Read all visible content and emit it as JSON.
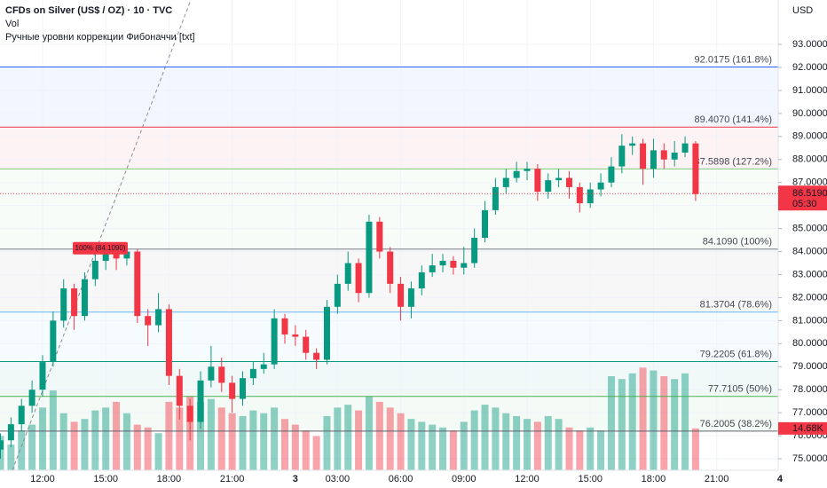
{
  "chart_data": {
    "type": "candlestick",
    "title": "CFDs on Silver (US$ / OZ) · 10 · TVC",
    "volume_label": "Vol",
    "indicator_label": "Ручные уровни коррекции Фибоначчи [txt]",
    "y_axis_label": "USD",
    "categories": [
      null,
      null,
      null,
      null,
      "12:00",
      null,
      null,
      null,
      null,
      null,
      "15:00",
      null,
      null,
      null,
      null,
      null,
      "18:00",
      null,
      null,
      null,
      null,
      null,
      "21:00",
      null,
      null,
      null,
      null,
      null,
      "3",
      null,
      null,
      null,
      "03:00",
      null,
      null,
      null,
      null,
      null,
      "06:00",
      null,
      null,
      null,
      null,
      null,
      "09:00",
      null,
      null,
      null,
      null,
      null,
      "12:00",
      null,
      null,
      null,
      null,
      null,
      "15:00",
      null,
      null,
      null,
      null,
      null,
      "18:00",
      null,
      null,
      null,
      null,
      null,
      "21:00",
      null,
      null,
      null,
      null,
      null,
      "4"
    ],
    "open": [
      75.4,
      75.8,
      76.5,
      77.3,
      78.0,
      79.2,
      81.0,
      82.4,
      81.2,
      82.8,
      83.6,
      84.1,
      83.7,
      84.0,
      81.2,
      80.8,
      81.5,
      78.6,
      77.3,
      76.6,
      78.4,
      79.0,
      78.3,
      77.6,
      78.5,
      78.9,
      79.1,
      81.1,
      80.4,
      80.3,
      79.6,
      79.3,
      81.6,
      82.6,
      83.5,
      82.2,
      85.3,
      84.0,
      82.6,
      81.6,
      82.4,
      83.1,
      83.4,
      83.6,
      83.3,
      83.5,
      84.6,
      85.8,
      86.8,
      87.2,
      87.5,
      87.6,
      86.6,
      87.1,
      87.2,
      86.8,
      86.1,
      86.7,
      87.0,
      87.7,
      88.6,
      88.7,
      87.6,
      88.4,
      88.0,
      88.3,
      88.7,
      null,
      null,
      null,
      null,
      null,
      null,
      null,
      null
    ],
    "high": [
      76.1,
      76.8,
      77.6,
      78.4,
      79.5,
      81.4,
      82.8,
      82.6,
      83.1,
      84.0,
      84.4,
      84.4,
      84.3,
      84.1,
      81.5,
      82.2,
      81.7,
      78.9,
      77.6,
      78.8,
      79.9,
      79.4,
      78.6,
      78.8,
      79.2,
      79.6,
      81.5,
      81.3,
      80.8,
      80.6,
      79.8,
      81.9,
      83.0,
      84.0,
      83.7,
      85.6,
      85.5,
      84.2,
      82.9,
      82.7,
      83.4,
      83.9,
      83.9,
      83.8,
      84.2,
      85.0,
      86.2,
      87.2,
      87.6,
      87.9,
      87.9,
      87.8,
      87.4,
      87.6,
      87.5,
      87.0,
      87.0,
      87.4,
      88.1,
      89.1,
      89.0,
      88.9,
      88.9,
      88.7,
      88.8,
      89.0,
      88.8,
      null,
      null,
      null,
      null,
      null,
      null,
      null,
      null
    ],
    "low": [
      75.0,
      75.5,
      76.2,
      77.0,
      77.7,
      79.0,
      80.7,
      80.6,
      81.0,
      82.5,
      83.2,
      83.2,
      83.4,
      80.9,
      79.9,
      80.5,
      78.2,
      76.7,
      75.8,
      76.3,
      78.1,
      77.9,
      77.0,
      77.3,
      78.2,
      78.7,
      78.9,
      80.0,
      79.9,
      79.3,
      78.9,
      79.1,
      81.3,
      82.3,
      81.8,
      82.0,
      83.7,
      82.2,
      81.0,
      81.1,
      82.1,
      82.9,
      83.1,
      83.0,
      83.0,
      83.3,
      84.4,
      85.6,
      86.5,
      87.0,
      87.1,
      86.2,
      86.3,
      86.8,
      86.3,
      85.7,
      85.9,
      86.4,
      86.8,
      87.4,
      88.2,
      86.9,
      87.2,
      87.6,
      87.7,
      88.1,
      86.2,
      null,
      null,
      null,
      null,
      null,
      null,
      null,
      null
    ],
    "close": [
      75.8,
      76.5,
      77.3,
      78.0,
      79.2,
      81.0,
      82.4,
      81.2,
      82.8,
      83.6,
      84.1,
      83.7,
      84.0,
      81.2,
      80.8,
      81.5,
      78.6,
      77.3,
      76.6,
      78.4,
      79.0,
      78.3,
      77.6,
      78.5,
      78.9,
      79.1,
      81.1,
      80.4,
      80.3,
      79.6,
      79.3,
      81.6,
      82.6,
      83.5,
      82.2,
      85.3,
      84.0,
      82.6,
      81.6,
      82.4,
      83.1,
      83.4,
      83.6,
      83.3,
      83.5,
      84.6,
      85.8,
      86.8,
      87.2,
      87.5,
      87.6,
      86.6,
      87.1,
      87.2,
      86.8,
      86.1,
      86.7,
      87.0,
      87.7,
      88.6,
      88.7,
      87.6,
      88.4,
      88.0,
      88.3,
      88.7,
      86.5,
      null,
      null,
      null,
      null,
      null,
      null,
      null,
      null
    ],
    "volume": [
      12000,
      9000,
      14000,
      16000,
      22000,
      28000,
      20000,
      17000,
      18000,
      21000,
      22000,
      24000,
      20000,
      16000,
      15000,
      13000,
      24000,
      22000,
      26000,
      24000,
      25000,
      22000,
      20000,
      19000,
      21000,
      20000,
      22000,
      18000,
      16000,
      14000,
      12000,
      19000,
      22000,
      23000,
      21000,
      26000,
      24000,
      22000,
      20000,
      18000,
      17000,
      16000,
      15000,
      14000,
      17000,
      21000,
      23000,
      22000,
      20000,
      19000,
      18000,
      17000,
      19000,
      18000,
      15000,
      14000,
      15000,
      14000,
      33000,
      32000,
      34000,
      36000,
      35000,
      33000,
      32000,
      34000,
      14680,
      null,
      null,
      null,
      null,
      null,
      null,
      null,
      null
    ],
    "up_color": "#089981",
    "down_color": "#f23645",
    "ylim": [
      74.5,
      94.93
    ],
    "volume_ylim": [
      0,
      165000
    ],
    "yticks": [
      {
        "value": 75,
        "label": "75.0000"
      },
      {
        "value": 76,
        "label": "76.0000"
      },
      {
        "value": 77,
        "label": "77.0000"
      },
      {
        "value": 78,
        "label": "78.0000"
      },
      {
        "value": 79,
        "label": "79.0000"
      },
      {
        "value": 80,
        "label": "80.0000"
      },
      {
        "value": 81,
        "label": "81.0000"
      },
      {
        "value": 82,
        "label": "82.0000"
      },
      {
        "value": 83,
        "label": "83.0000"
      },
      {
        "value": 84,
        "label": "84.0000"
      },
      {
        "value": 85,
        "label": "85.0000"
      },
      {
        "value": 86,
        "label": "86.0000"
      },
      {
        "value": 87,
        "label": "87.0000"
      },
      {
        "value": 88,
        "label": "88.0000"
      },
      {
        "value": 89,
        "label": "89.0000"
      },
      {
        "value": 90,
        "label": "90.0000"
      },
      {
        "value": 91,
        "label": "91.0000"
      },
      {
        "value": 92,
        "label": "92.0000"
      },
      {
        "value": 93,
        "label": "93.0000"
      }
    ],
    "grid": true,
    "fib_levels": [
      {
        "value": 92.0175,
        "label": "92.0175 (161.8%)",
        "color": "#2962ff"
      },
      {
        "value": 89.407,
        "label": "89.4070 (141.4%)",
        "color": "#f23645"
      },
      {
        "value": 87.5898,
        "label": "87.5898 (127.2%)",
        "color": "#81c784"
      },
      {
        "value": 84.109,
        "label": "84.1090 (100%)",
        "color": "#787b86"
      },
      {
        "value": 81.3704,
        "label": "81.3704 (78.6%)",
        "color": "#64b5f6"
      },
      {
        "value": 79.2205,
        "label": "79.2205 (61.8%)",
        "color": "#089981"
      },
      {
        "value": 77.7105,
        "label": "77.7105 (50%)",
        "color": "#4caf50"
      },
      {
        "value": 76.2005,
        "label": "76.2005 (38.2%)",
        "color": "#5d606b"
      }
    ],
    "fib_badge": "100% (84.1090)",
    "last_price": {
      "value": 86.519,
      "label": "86.5190"
    },
    "countdown": "05:30",
    "last_volume": {
      "value": 14680,
      "label": "14.68K"
    }
  }
}
